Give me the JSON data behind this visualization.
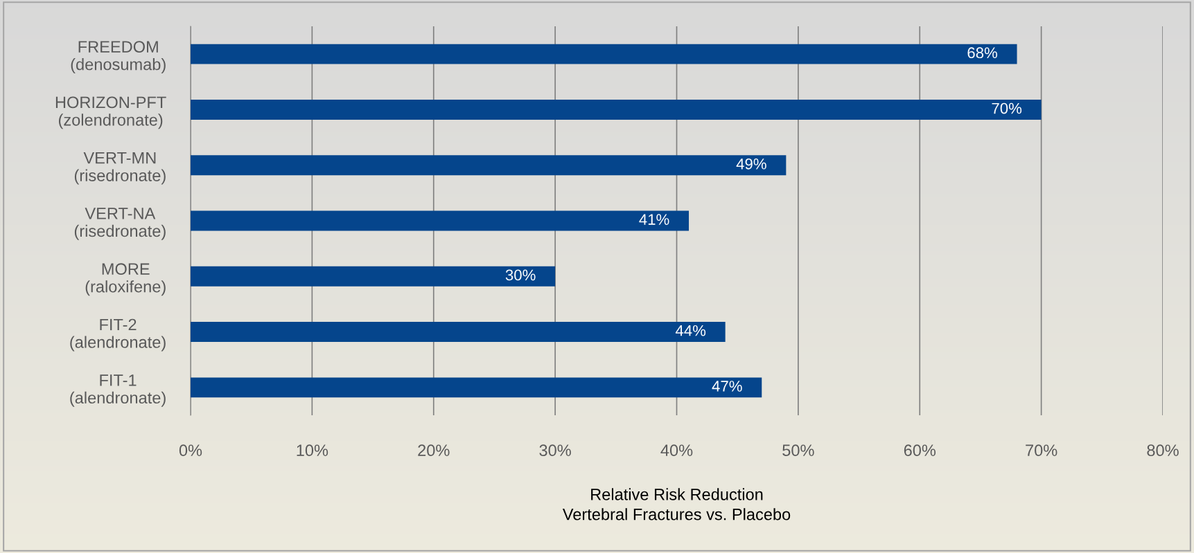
{
  "chart_data": {
    "type": "bar",
    "orientation": "horizontal",
    "xlabel": "Relative Risk Reduction\nVertebral Fractures vs. Placebo",
    "categories": [
      "FREEDOM\n(denosumab)",
      "HORIZON-PFT\n(zolendronate)",
      "VERT-MN\n(risedronate)",
      "VERT-NA\n(risedronate)",
      "MORE\n(raloxifene)",
      "FIT-2\n(alendronate)",
      "FIT-1\n(alendronate)"
    ],
    "values": [
      68,
      70,
      49,
      41,
      30,
      44,
      47
    ],
    "value_labels": [
      "68%",
      "70%",
      "49%",
      "41%",
      "30%",
      "44%",
      "47%"
    ],
    "color": "#05458c",
    "xlim": [
      0,
      80
    ],
    "xticks": [
      {
        "value": 0,
        "label": "0%"
      },
      {
        "value": 10,
        "label": "10%"
      },
      {
        "value": 20,
        "label": "20%"
      },
      {
        "value": 30,
        "label": "30%"
      },
      {
        "value": 40,
        "label": "40%"
      },
      {
        "value": 50,
        "label": "50%"
      },
      {
        "value": 60,
        "label": "60%"
      },
      {
        "value": 70,
        "label": "70%"
      },
      {
        "value": 80,
        "label": "80%"
      }
    ],
    "grid": "x",
    "legend": false
  }
}
